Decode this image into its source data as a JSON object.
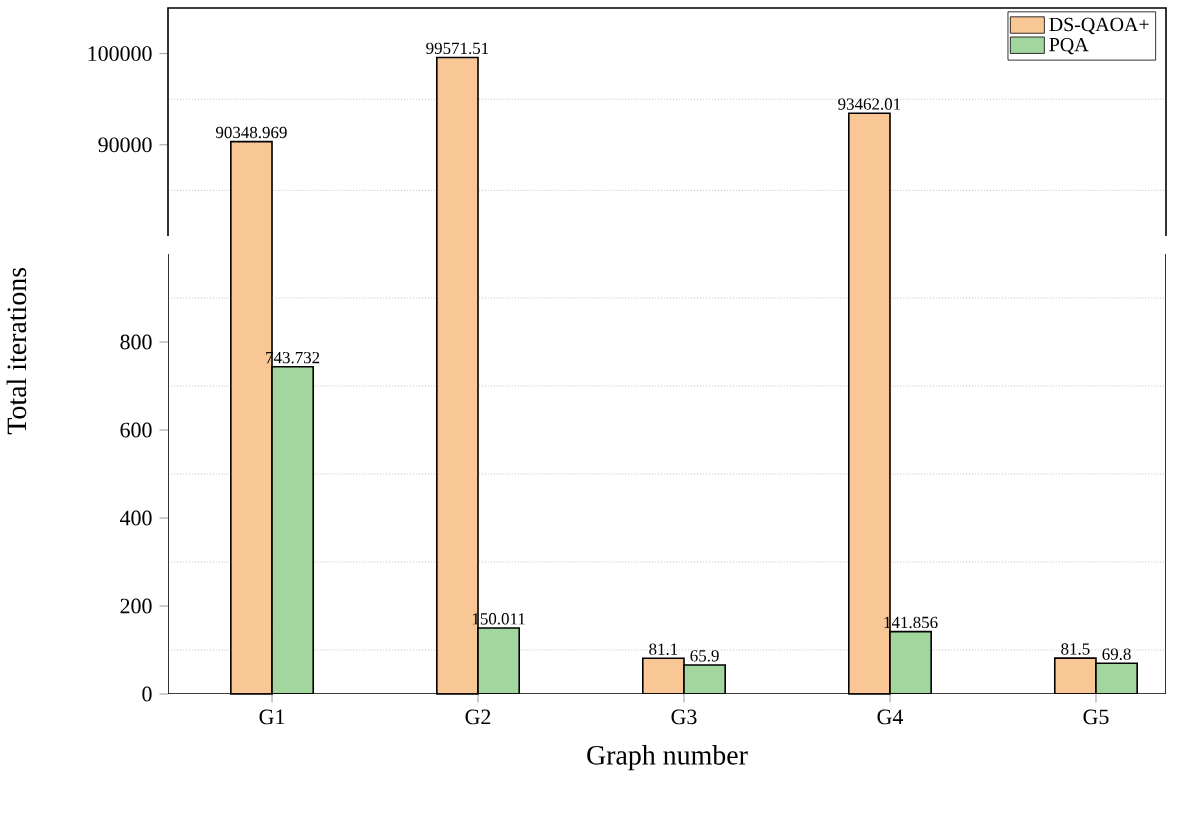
{
  "chart_data": [
    {
      "type": "bar",
      "ylim": [
        80000,
        105000
      ],
      "yticks": [
        90000,
        100000
      ],
      "legend": "top right",
      "tick_labels": "y",
      "ref_lines": [
        {
          "axis": "y",
          "value": 85000,
          "color": "#c0c0c0",
          "line_style": "dotted"
        },
        {
          "axis": "y",
          "value": 95000,
          "color": "#c0c0c0",
          "line_style": "dotted"
        }
      ],
      "series": [
        {
          "name": "DS-QAOA+",
          "color": "#f9c795",
          "values": [
            90348.969,
            99571.51,
            null,
            93462.01,
            null
          ],
          "value_labels": [
            "90348.969",
            "99571.51",
            null,
            "93462.01",
            null
          ]
        },
        {
          "name": "PQA",
          "color": "#a3d69f",
          "values": [
            null,
            null,
            null,
            null,
            null
          ]
        }
      ]
    },
    {
      "type": "bar",
      "categories": [
        "G1",
        "G2",
        "G3",
        "G4",
        "G5"
      ],
      "xlabel": "Graph number",
      "ylabel": "Total iterations",
      "ylim": [
        0,
        1000
      ],
      "yticks": [
        0,
        200,
        400,
        600,
        800
      ],
      "ref_lines": [
        {
          "axis": "y",
          "value": 100,
          "color": "#c0c0c0",
          "line_style": "dotted"
        },
        {
          "axis": "y",
          "value": 300,
          "color": "#c0c0c0",
          "line_style": "dotted"
        },
        {
          "axis": "y",
          "value": 500,
          "color": "#c0c0c0",
          "line_style": "dotted"
        },
        {
          "axis": "y",
          "value": 700,
          "color": "#c0c0c0",
          "line_style": "dotted"
        },
        {
          "axis": "y",
          "value": 900,
          "color": "#c0c0c0",
          "line_style": "dotted"
        }
      ],
      "series": [
        {
          "color": "#f9c795",
          "values": [
            null,
            null,
            81.1,
            null,
            81.5
          ],
          "value_labels": [
            null,
            null,
            "81.1",
            null,
            "81.5"
          ]
        },
        {
          "color": "#a3d69f",
          "values": [
            743.732,
            150.011,
            65.9,
            141.856,
            69.8
          ],
          "value_labels": [
            "743.732",
            "150.011",
            "65.9",
            "141.856",
            "69.8"
          ]
        }
      ]
    }
  ]
}
